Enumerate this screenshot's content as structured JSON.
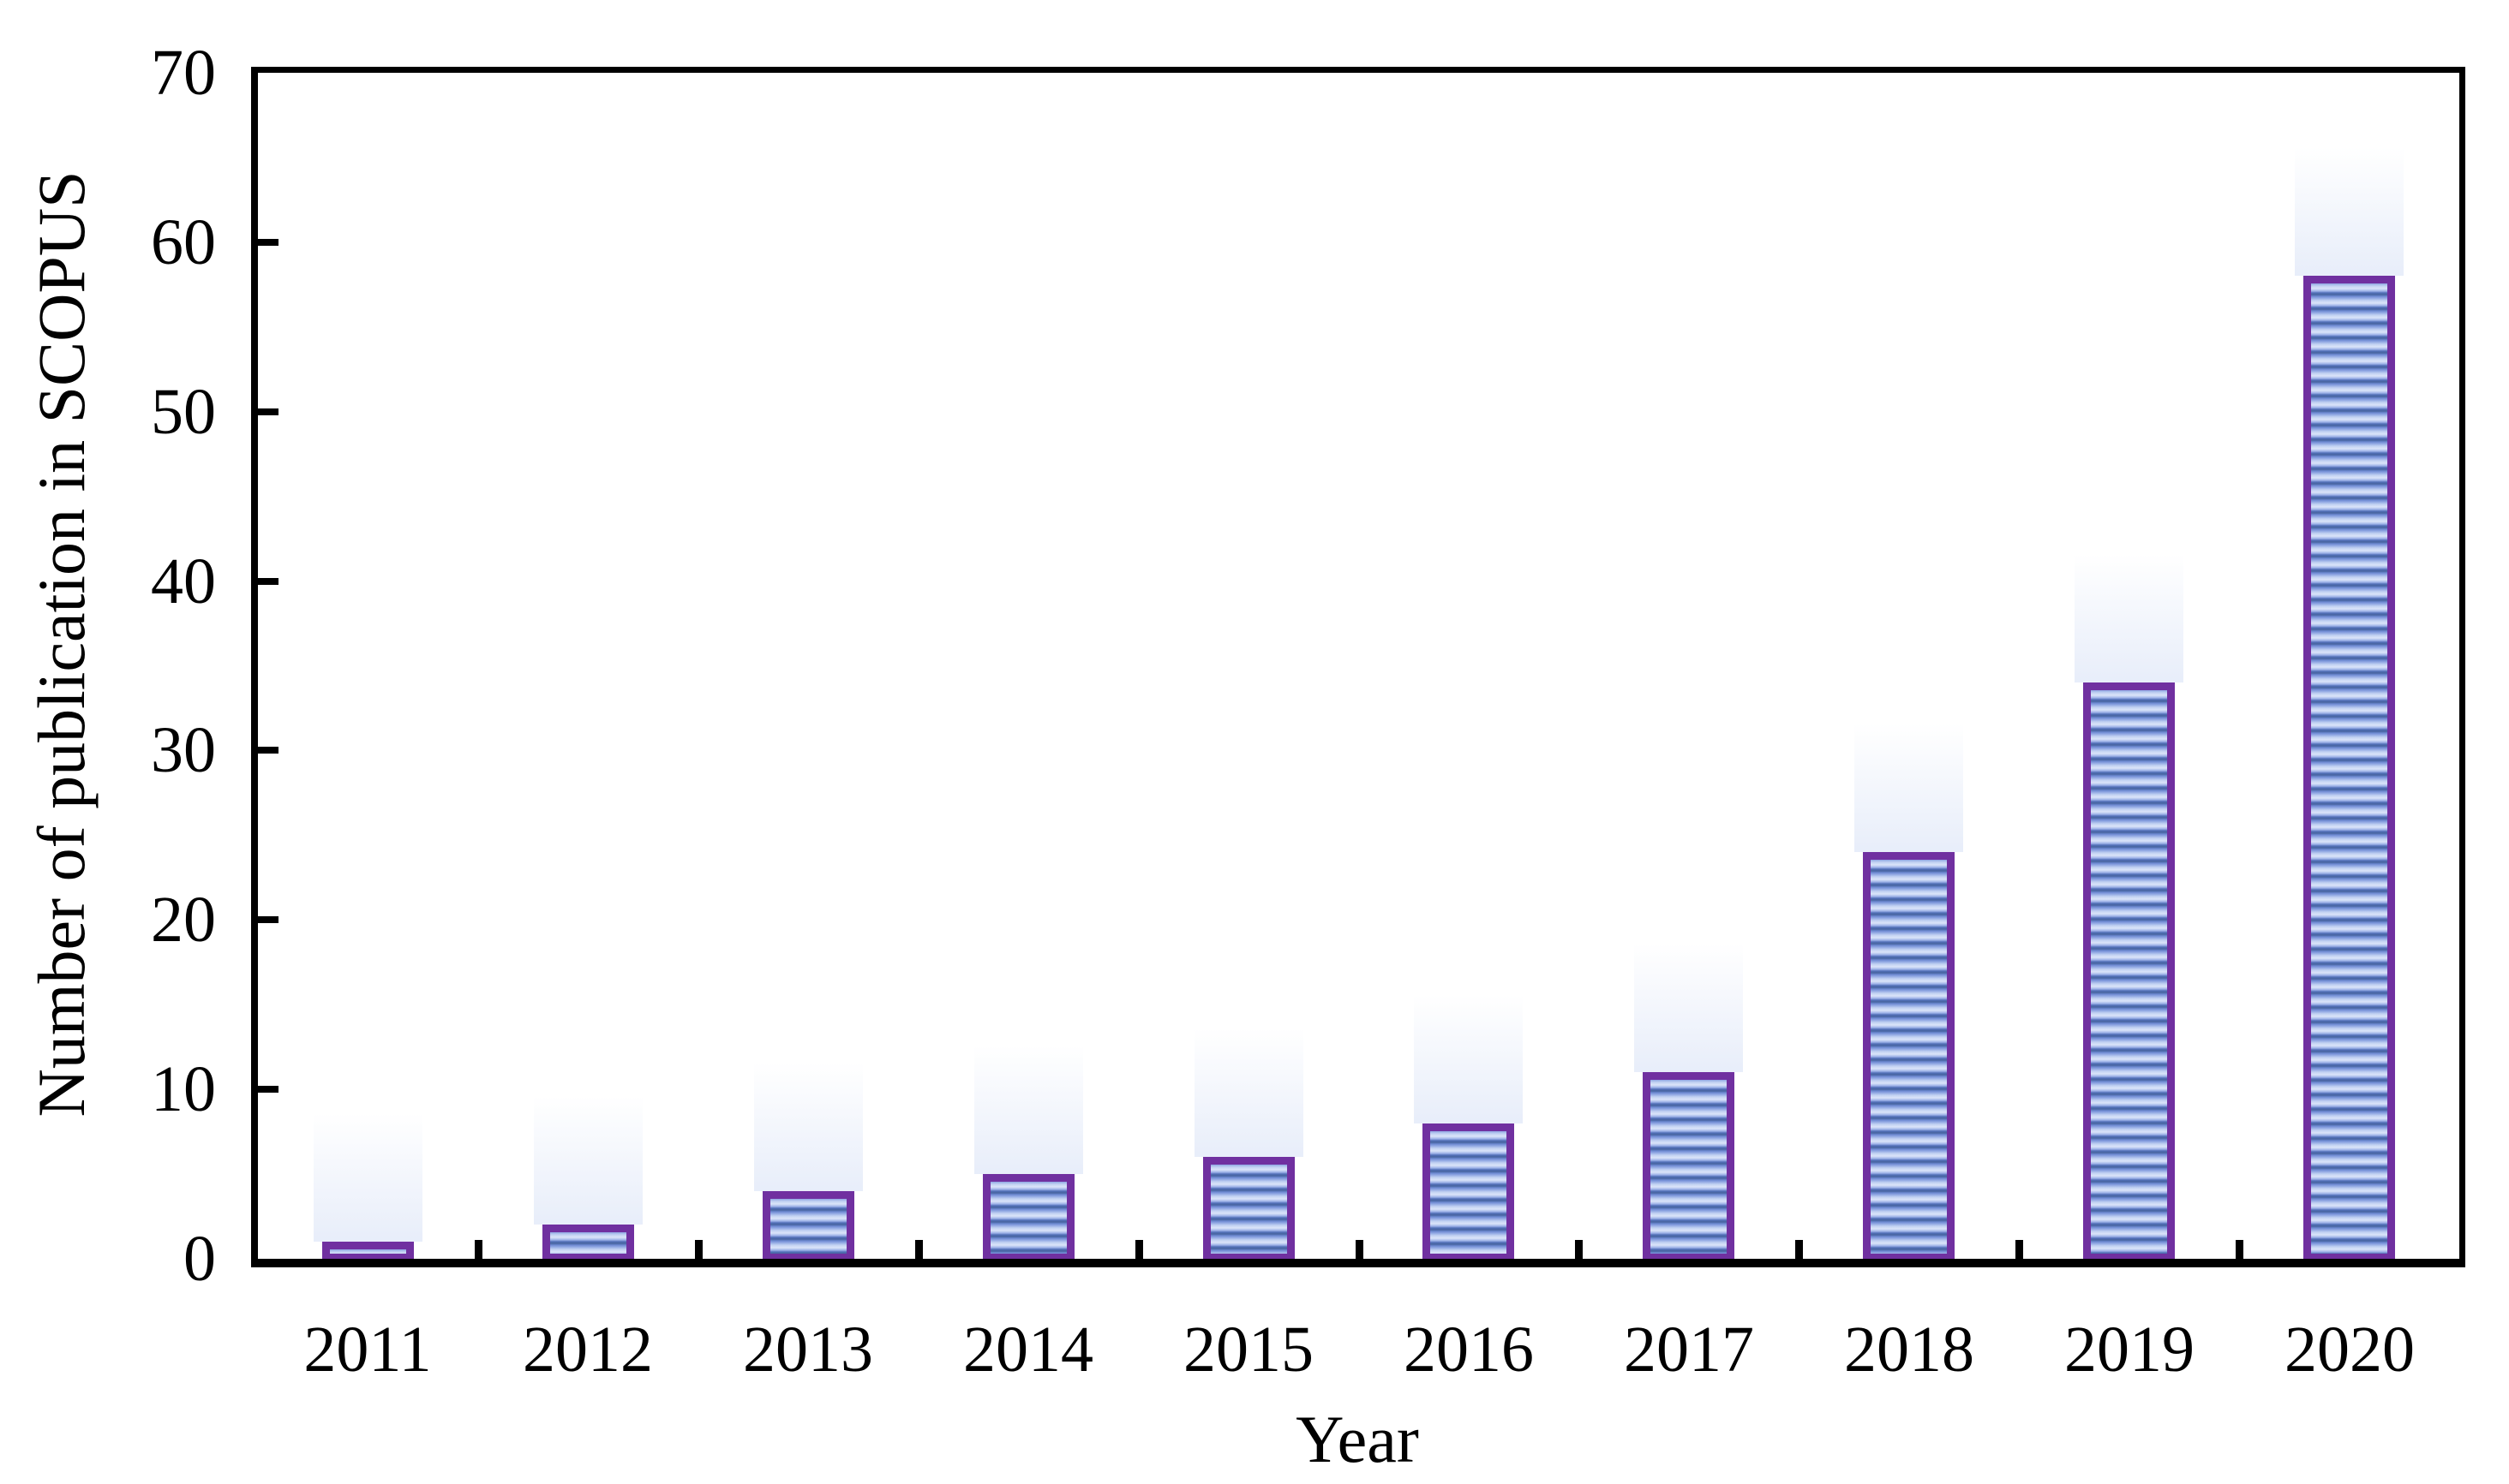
{
  "chart_data": {
    "type": "bar",
    "title": "",
    "xlabel": "Year",
    "ylabel": "Number of publication in SCOPUS",
    "categories": [
      "2011",
      "2012",
      "2013",
      "2014",
      "2015",
      "2016",
      "2017",
      "2018",
      "2019",
      "2020"
    ],
    "values": [
      1,
      2,
      4,
      5,
      6,
      8,
      11,
      24,
      34,
      58
    ],
    "ylim": [
      0,
      70
    ],
    "yticks": [
      0,
      10,
      20,
      30,
      40,
      50,
      60,
      70
    ],
    "grid": false,
    "legend": "none",
    "style": {
      "bar_border_color": "#7030A0",
      "bar_stripe_light": "#dbe4f9",
      "bar_stripe_mid": "#8ea6e2",
      "bar_stripe_dark": "#47649f",
      "axis_color": "#000000",
      "text_color": "#000000",
      "background": "#ffffff"
    }
  }
}
